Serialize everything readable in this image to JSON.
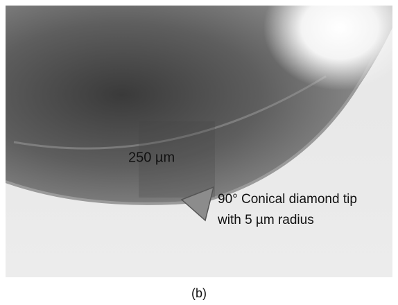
{
  "image": {
    "labels": [
      "250 µm",
      "90° Conical diamond tip",
      "with 5 µm radius"
    ],
    "caption": "(b)"
  }
}
